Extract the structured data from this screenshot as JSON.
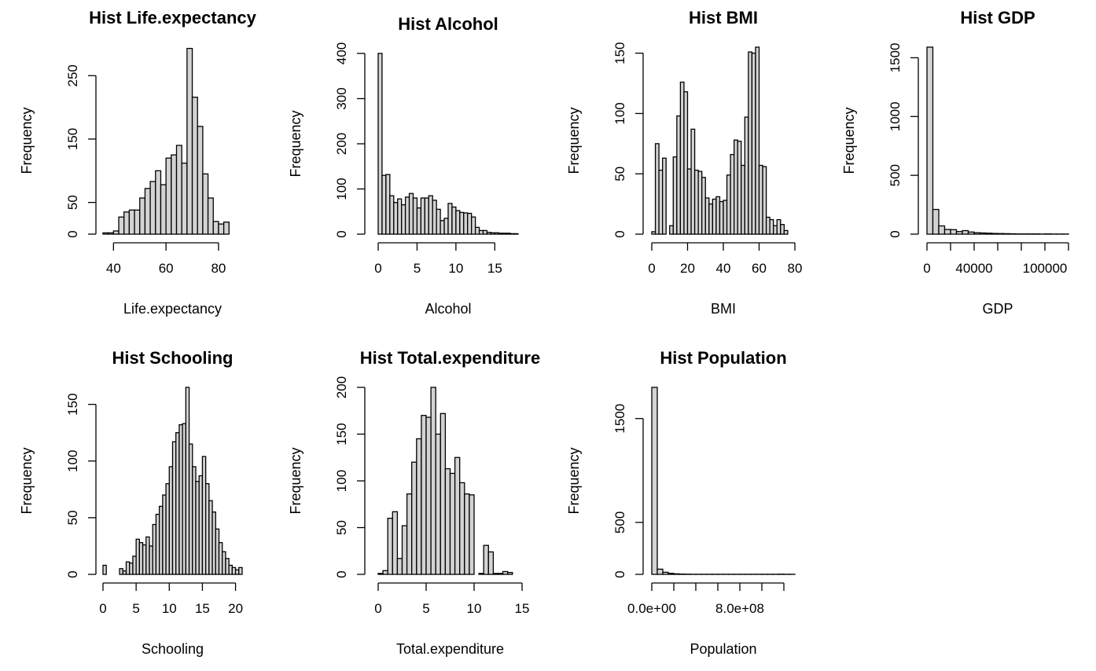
{
  "chart_data": [
    {
      "type": "bar",
      "title": "Hist Life.expectancy",
      "xlabel": "Life.expectancy",
      "ylabel": "Frequency",
      "xlim": [
        36,
        89
      ],
      "ylim": [
        0,
        295
      ],
      "bin_start": 36,
      "bin_width": 2,
      "xticks": [
        40,
        60,
        80
      ],
      "xtick_labels": [
        "40",
        "60",
        "80"
      ],
      "yticks": [
        0,
        50,
        150,
        250
      ],
      "ytick_labels": [
        "0",
        "50",
        "150",
        "250"
      ],
      "values": [
        2,
        2,
        5,
        27,
        35,
        38,
        38,
        57,
        72,
        83,
        100,
        78,
        120,
        125,
        140,
        112,
        293,
        216,
        170,
        95,
        57,
        20,
        16,
        19
      ]
    },
    {
      "type": "bar",
      "title": "Hist Alcohol",
      "xlabel": "Alcohol",
      "ylabel": "Frequency",
      "xlim": [
        0,
        18
      ],
      "ylim": [
        0,
        400
      ],
      "bin_start": 0,
      "bin_width": 0.5,
      "xticks": [
        0,
        5,
        10,
        15
      ],
      "xtick_labels": [
        "0",
        "5",
        "10",
        "15"
      ],
      "yticks": [
        0,
        100,
        200,
        300,
        400
      ],
      "ytick_labels": [
        "0",
        "100",
        "200",
        "300",
        "400"
      ],
      "values": [
        400,
        130,
        132,
        85,
        70,
        78,
        65,
        82,
        90,
        80,
        58,
        80,
        80,
        85,
        75,
        55,
        30,
        35,
        68,
        60,
        52,
        48,
        47,
        46,
        38,
        15,
        8,
        8,
        4,
        3,
        3,
        2,
        2,
        2,
        1,
        1
      ]
    },
    {
      "type": "bar",
      "title": "Hist BMI",
      "xlabel": "BMI",
      "ylabel": "Frequency",
      "xlim": [
        0,
        80
      ],
      "ylim": [
        0,
        155
      ],
      "bin_start": 0,
      "bin_width": 2,
      "xticks": [
        0,
        20,
        40,
        60,
        80
      ],
      "xtick_labels": [
        "0",
        "20",
        "40",
        "60",
        "80"
      ],
      "yticks": [
        0,
        50,
        100,
        150
      ],
      "ytick_labels": [
        "0",
        "50",
        "100",
        "150"
      ],
      "values": [
        2,
        75,
        53,
        63,
        0,
        7,
        64,
        98,
        126,
        118,
        54,
        87,
        53,
        52,
        47,
        30,
        25,
        29,
        31,
        27,
        28,
        49,
        66,
        78,
        77,
        57,
        97,
        151,
        150,
        155,
        57,
        56,
        14,
        12,
        7,
        12,
        8,
        3
      ]
    },
    {
      "type": "bar",
      "title": "Hist GDP",
      "xlabel": "GDP",
      "ylabel": "Frequency",
      "xlim": [
        0,
        120000
      ],
      "ylim": [
        0,
        1590
      ],
      "bin_start": 0,
      "bin_width": 5000,
      "xticks": [
        0,
        20000,
        40000,
        60000,
        80000,
        100000,
        120000
      ],
      "xtick_labels": [
        "0",
        "",
        "40000",
        "",
        "",
        "100000",
        ""
      ],
      "yticks": [
        0,
        500,
        1000,
        1500
      ],
      "ytick_labels": [
        "0",
        "500",
        "1000",
        "1500"
      ],
      "values": [
        1590,
        210,
        70,
        40,
        38,
        22,
        30,
        18,
        12,
        10,
        8,
        6,
        5,
        4,
        3,
        2,
        2,
        2,
        2,
        1,
        2,
        1,
        1,
        1
      ]
    },
    {
      "type": "bar",
      "title": "Hist Schooling",
      "xlabel": "Schooling",
      "ylabel": "Frequency",
      "xlim": [
        0,
        21
      ],
      "ylim": [
        0,
        165
      ],
      "bin_start": 0,
      "bin_width": 0.5,
      "xticks": [
        0,
        5,
        10,
        15,
        20
      ],
      "xtick_labels": [
        "0",
        "5",
        "10",
        "15",
        "20"
      ],
      "yticks": [
        0,
        50,
        100,
        150
      ],
      "ytick_labels": [
        "0",
        "50",
        "100",
        "150"
      ],
      "values": [
        8,
        0,
        0,
        0,
        0,
        5,
        3,
        11,
        10,
        16,
        31,
        28,
        26,
        33,
        25,
        44,
        53,
        60,
        70,
        80,
        95,
        117,
        125,
        132,
        133,
        165,
        115,
        95,
        82,
        87,
        104,
        80,
        65,
        55,
        40,
        28,
        20,
        14,
        8,
        6,
        4,
        6
      ]
    },
    {
      "type": "bar",
      "title": "Hist Total.expenditure",
      "xlabel": "Total.expenditure",
      "ylabel": "Frequency",
      "xlim": [
        0,
        15
      ],
      "ylim": [
        0,
        200
      ],
      "bin_start": 0,
      "bin_width": 0.5,
      "xticks": [
        0,
        5,
        10,
        15
      ],
      "xtick_labels": [
        "0",
        "5",
        "10",
        "15"
      ],
      "yticks": [
        0,
        50,
        100,
        150,
        200
      ],
      "ytick_labels": [
        "0",
        "50",
        "100",
        "150",
        "200"
      ],
      "values": [
        1,
        4,
        60,
        67,
        17,
        52,
        86,
        120,
        145,
        170,
        168,
        200,
        150,
        172,
        113,
        108,
        125,
        98,
        86,
        85,
        0,
        1,
        31,
        24,
        1,
        1,
        3,
        2
      ]
    },
    {
      "type": "bar",
      "title": "Hist Population",
      "xlabel": "Population",
      "ylabel": "Frequency",
      "xlim": [
        0,
        1300000000
      ],
      "ylim": [
        0,
        1800
      ],
      "bin_start": 0,
      "bin_width": 50000000,
      "xticks": [
        0,
        200000000,
        400000000,
        600000000,
        800000000,
        1000000000,
        1200000000
      ],
      "xtick_labels": [
        "0.0e+00",
        "",
        "",
        "",
        "8.0e+08",
        "",
        ""
      ],
      "yticks": [
        0,
        500,
        1500
      ],
      "ytick_labels": [
        "0",
        "500",
        "1500"
      ],
      "values": [
        1800,
        50,
        20,
        10,
        5,
        3,
        2,
        1,
        1,
        1,
        1,
        1,
        1,
        1,
        1,
        1,
        1,
        1,
        1,
        1,
        1,
        1,
        1,
        2,
        1,
        1
      ]
    }
  ]
}
